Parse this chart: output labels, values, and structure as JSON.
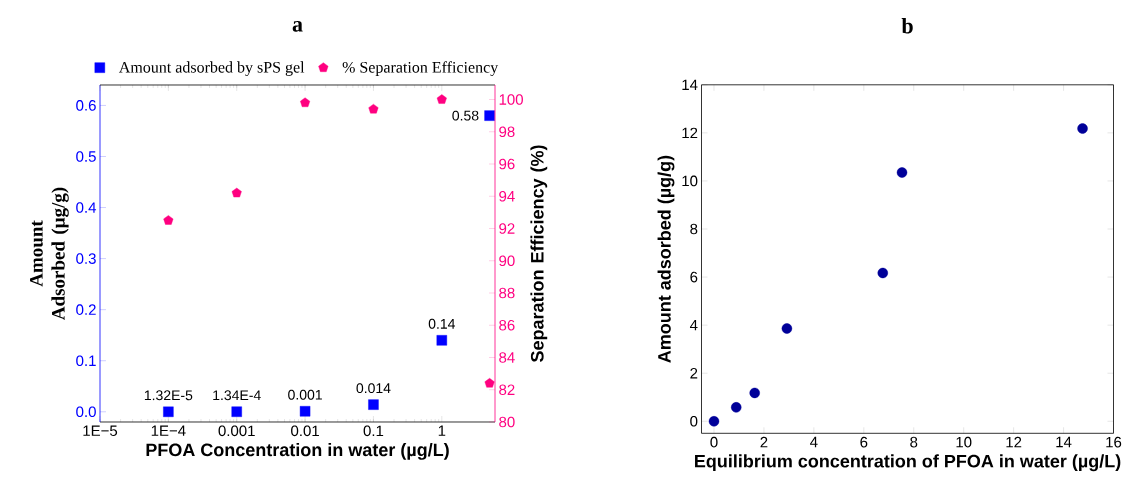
{
  "chart_data": [
    {
      "type": "scatter",
      "title": "a",
      "xlabel": "PFOA Concentration in water (µg/L)",
      "ylabel": "Amount Adsorbed (µg/g)",
      "y2label": "Separation Efficiency (%)",
      "log": "x",
      "legend": "top",
      "xlim": [
        1e-05,
        6
      ],
      "xticks": [
        {
          "value": 1e-05,
          "label": "1E−5"
        },
        {
          "value": 0.0001,
          "label": "1E−4"
        },
        0.001,
        0.01,
        0.1,
        1
      ],
      "ylim": [
        -0.02,
        0.64
      ],
      "yticks": [
        {
          "value": 0,
          "label": "0.0"
        },
        0.1,
        0.2,
        0.3,
        0.4,
        0.5,
        0.6
      ],
      "y2lim": [
        80,
        100.9
      ],
      "y2ticks": [
        80,
        82,
        84,
        86,
        88,
        90,
        92,
        94,
        96,
        98,
        100
      ],
      "series": [
        {
          "name": "Amount adsorbed by sPS gel",
          "color": "#0000ff",
          "marker": "square",
          "x": [
            0.0001,
            0.001,
            0.01,
            0.1,
            1,
            5
          ],
          "values": [
            1.32e-05,
            0.000134,
            0.001,
            0.014,
            0.14,
            0.58
          ],
          "value_labels": [
            "1.32E-5",
            "1.34E-4",
            "0.001",
            "0.014",
            "0.14",
            "0.58"
          ]
        },
        {
          "name": "% Separation Efficiency",
          "color": "#ff0080",
          "axis": "y2",
          "x": [
            0.0001,
            0.001,
            0.01,
            0.1,
            1,
            5
          ],
          "values": [
            92.5,
            94.2,
            99.8,
            99.4,
            100.0,
            82.4
          ]
        }
      ]
    },
    {
      "type": "scatter",
      "title": "b",
      "xlabel": "Equilibrium concentration of PFOA in water (µg/L)",
      "ylabel": "Amount adsorbed (µg/g)",
      "xlim": [
        -0.5,
        16
      ],
      "xticks": [
        0,
        2,
        4,
        6,
        8,
        10,
        12,
        14,
        16
      ],
      "ylim": [
        -0.5,
        14
      ],
      "yticks": [
        0,
        2,
        4,
        6,
        8,
        10,
        12,
        14
      ],
      "series": [
        {
          "color": "#000099",
          "marker": "circle",
          "x": [
            0,
            0.89,
            1.63,
            2.92,
            6.76,
            7.53,
            14.76
          ],
          "values": [
            0,
            0.58,
            1.18,
            3.86,
            6.17,
            10.35,
            12.18
          ]
        }
      ]
    }
  ]
}
